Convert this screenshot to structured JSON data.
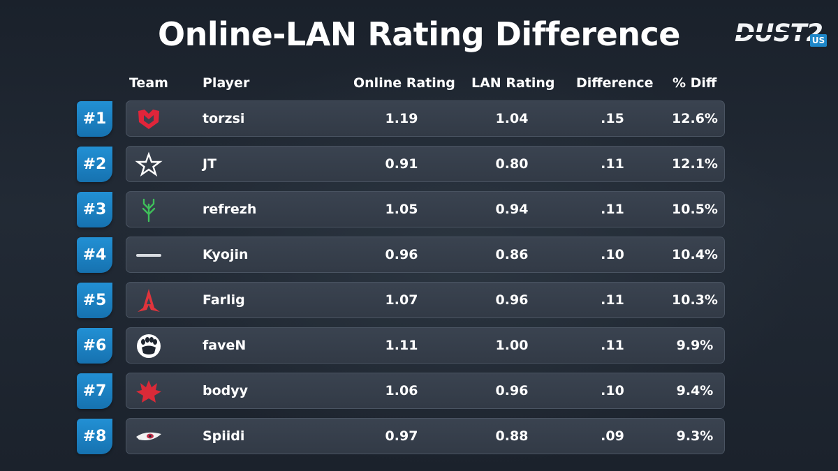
{
  "title": "Online-LAN Rating Difference",
  "brand": {
    "logo_main": "DUST2",
    "logo_sub": "US"
  },
  "columns": {
    "team": "Team",
    "player": "Player",
    "online": "Online Rating",
    "lan": "LAN Rating",
    "difference": "Difference",
    "pct": "% Diff"
  },
  "rows": [
    {
      "rank": "#1",
      "team_icon": "mousesports-logo-icon",
      "player": "torzsi",
      "online": "1.19",
      "lan": "1.04",
      "difference": ".15",
      "pct": "12.6%"
    },
    {
      "rank": "#2",
      "team_icon": "complexity-star-logo-icon",
      "player": "JT",
      "online": "0.91",
      "lan": "0.80",
      "difference": ".11",
      "pct": "12.1%"
    },
    {
      "rank": "#3",
      "team_icon": "sprout-logo-icon",
      "player": "refrezh",
      "online": "1.05",
      "lan": "0.94",
      "difference": ".11",
      "pct": "10.5%"
    },
    {
      "rank": "#4",
      "team_icon": "no-team-dash-icon",
      "player": "Kyojin",
      "online": "0.96",
      "lan": "0.86",
      "difference": ".10",
      "pct": "10.4%"
    },
    {
      "rank": "#5",
      "team_icon": "astralis-logo-icon",
      "player": "Farlig",
      "online": "1.07",
      "lan": "0.96",
      "difference": ".11",
      "pct": "10.3%"
    },
    {
      "rank": "#6",
      "team_icon": "big-bear-paw-logo-icon",
      "player": "faveN",
      "online": "1.11",
      "lan": "1.00",
      "difference": ".11",
      "pct": "9.9%"
    },
    {
      "rank": "#7",
      "team_icon": "anonymo-logo-icon",
      "player": "bodyy",
      "online": "1.06",
      "lan": "0.96",
      "difference": ".10",
      "pct": "9.4%"
    },
    {
      "rank": "#8",
      "team_icon": "eternal-fire-eye-logo-icon",
      "player": "Spiidi",
      "online": "0.97",
      "lan": "0.88",
      "difference": ".09",
      "pct": "9.3%"
    }
  ],
  "colors": {
    "rank_badge": "#1e87c9",
    "row_bar": "#363f4b",
    "mouz_red": "#e0253a",
    "sprout_green": "#3fbf5a",
    "astralis_red": "#e0343c",
    "anonymo_red": "#d92a38"
  }
}
